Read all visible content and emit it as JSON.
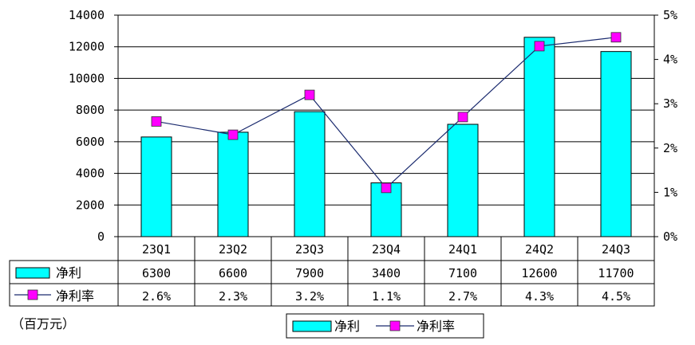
{
  "chart_data": {
    "type": "bar",
    "categories": [
      "23Q1",
      "23Q2",
      "23Q3",
      "23Q4",
      "24Q1",
      "24Q2",
      "24Q3"
    ],
    "series": [
      {
        "name": "净利",
        "type": "bar",
        "axis": "left",
        "values": [
          6300,
          6600,
          7900,
          3400,
          7100,
          12600,
          11700
        ],
        "display": [
          "6300",
          "6600",
          "7900",
          "3400",
          "7100",
          "12600",
          "11700"
        ],
        "color": "#00ffff"
      },
      {
        "name": "净利率",
        "type": "line",
        "axis": "right",
        "values": [
          2.6,
          2.3,
          3.2,
          1.1,
          2.7,
          4.3,
          4.5
        ],
        "display": [
          "2.6%",
          "2.3%",
          "3.2%",
          "1.1%",
          "2.7%",
          "4.3%",
          "4.5%"
        ],
        "color": "#ff00ff",
        "line_color": "#1a2a6e"
      }
    ],
    "y_left": {
      "ylim": [
        0,
        14000
      ],
      "ticks": [
        "0",
        "2000",
        "4000",
        "6000",
        "8000",
        "10000",
        "12000",
        "14000"
      ]
    },
    "y_right": {
      "ylim": [
        0,
        5
      ],
      "ticks": [
        "0%",
        "1%",
        "2%",
        "3%",
        "4%",
        "5%"
      ]
    },
    "unit_label": "（百万元）",
    "grid": true,
    "legend": {
      "placement": "bottom-center",
      "entries": [
        "净利",
        "净利率"
      ]
    },
    "data_table": true
  }
}
